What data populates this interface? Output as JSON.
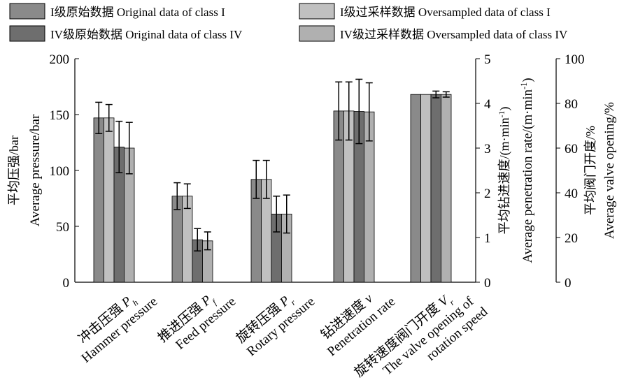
{
  "chart_data": {
    "type": "bar",
    "legend": {
      "placement": "top",
      "entries": [
        {
          "label": "I级原始数据   Original data of class I",
          "color": "#8a8a8a"
        },
        {
          "label": "I级过采样数据   Oversampled data of class I",
          "color": "#c0c0c0"
        },
        {
          "label": "IV级原始数据 Original data of class IV",
          "color": "#6e6e6e"
        },
        {
          "label": "IV级过采样数据 Oversampled data of class IV",
          "color": "#b0b0b0"
        }
      ]
    },
    "series": [
      {
        "name": "I级原始数据 Original data of class I",
        "values": [
          147,
          77,
          92,
          3.83,
          84
        ],
        "errors": [
          14,
          12,
          17,
          0.65,
          0
        ]
      },
      {
        "name": "I级过采样数据 Oversampled data of class I",
        "values": [
          147,
          77,
          92,
          3.83,
          84
        ],
        "errors": [
          12,
          11,
          17,
          0.65,
          0
        ]
      },
      {
        "name": "IV级原始数据 Original data of class IV",
        "values": [
          121,
          38,
          61,
          3.82,
          84
        ],
        "errors": [
          23,
          10,
          16,
          0.72,
          1.5
        ]
      },
      {
        "name": "IV级过采样数据 Oversampled data of class IV",
        "values": [
          120,
          37,
          61,
          3.81,
          84
        ],
        "errors": [
          23,
          8,
          17,
          0.65,
          1.2
        ]
      }
    ],
    "categories": [
      {
        "cn": "冲击压强",
        "sym": "P",
        "sub": "h",
        "en": [
          "Hammer pressure"
        ],
        "axis": "left"
      },
      {
        "cn": "推进压强",
        "sym": "P",
        "sub": "f",
        "en": [
          "Feed pressure"
        ],
        "axis": "left"
      },
      {
        "cn": "旋转压强",
        "sym": "P",
        "sub": "r",
        "en": [
          "Rotary pressure"
        ],
        "axis": "left"
      },
      {
        "cn": "钻进速度",
        "sym": "v",
        "sub": "",
        "en": [
          "Penetration rate"
        ],
        "axis": "mid"
      },
      {
        "cn": "旋转速度阀门开度",
        "sym": "V",
        "sub": "r",
        "en": [
          "The valve opening of",
          "rotation speed"
        ],
        "axis": "right"
      }
    ],
    "axes": {
      "left": {
        "label_cn": "平均压强/bar",
        "label_en": "Average pressure/bar",
        "ylim": [
          0,
          200
        ],
        "ticks": [
          0,
          50,
          100,
          150,
          200
        ]
      },
      "mid": {
        "label_cn": "平均钻进速度/(m·min",
        "label_en": "Average penetration rate/(m·min",
        "label_suffix": ")",
        "label_sup": "-1",
        "ylim": [
          0,
          5
        ],
        "ticks": [
          0,
          1,
          2,
          3,
          4,
          5
        ]
      },
      "right": {
        "label_cn": "平均阀门开度/%",
        "label_en": "Average valve opening/%",
        "ylim": [
          0,
          100
        ],
        "ticks": [
          0,
          20,
          40,
          60,
          80,
          100
        ]
      }
    }
  }
}
